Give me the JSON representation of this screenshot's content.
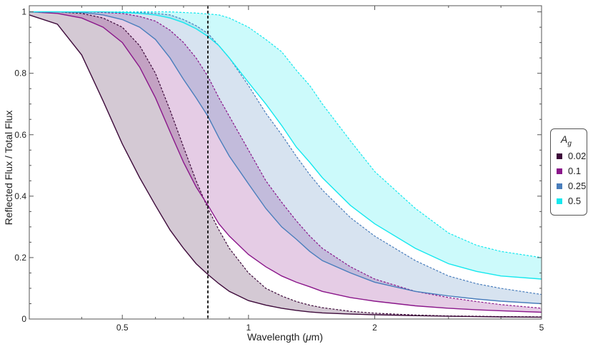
{
  "chart_data": {
    "type": "line",
    "xlabel_prefix": "Wavelength (",
    "xlabel_mu": "μ",
    "xlabel_suffix": "m)",
    "ylabel": "Reflected Flux / Total Flux",
    "xscale": "log",
    "xlim": [
      0.3,
      5
    ],
    "ylim": [
      0,
      1.02
    ],
    "xticks": [
      0.5,
      1,
      2,
      5
    ],
    "xtick_labels": [
      "0.5",
      "1",
      "2",
      "5"
    ],
    "yticks": [
      0,
      0.2,
      0.4,
      0.6,
      0.8,
      1
    ],
    "ytick_labels": [
      "0",
      "0.2",
      "0.4",
      "0.6",
      "0.8",
      "1"
    ],
    "vline_x": 0.8,
    "legend_title_main": "A",
    "legend_title_sub": "g",
    "x": [
      0.3,
      0.35,
      0.4,
      0.45,
      0.5,
      0.55,
      0.6,
      0.65,
      0.7,
      0.75,
      0.8,
      0.85,
      0.9,
      1.0,
      1.1,
      1.2,
      1.3,
      1.4,
      1.5,
      1.75,
      2.0,
      2.5,
      3.0,
      3.5,
      4.0,
      5.0
    ],
    "series": [
      {
        "name": "0.02",
        "color": "#3d0a3a",
        "solid": [
          0.99,
          0.96,
          0.86,
          0.71,
          0.57,
          0.46,
          0.37,
          0.29,
          0.23,
          0.18,
          0.145,
          0.115,
          0.09,
          0.06,
          0.045,
          0.035,
          0.028,
          0.023,
          0.02,
          0.016,
          0.014,
          0.011,
          0.009,
          0.008,
          0.007,
          0.006
        ],
        "dashed": [
          1.0,
          1.0,
          0.995,
          0.98,
          0.95,
          0.89,
          0.8,
          0.68,
          0.56,
          0.45,
          0.36,
          0.29,
          0.23,
          0.15,
          0.1,
          0.075,
          0.057,
          0.045,
          0.037,
          0.025,
          0.019,
          0.013,
          0.01,
          0.009,
          0.008,
          0.007
        ]
      },
      {
        "name": "0.1",
        "color": "#8a168a",
        "solid": [
          1.0,
          0.995,
          0.98,
          0.95,
          0.9,
          0.82,
          0.72,
          0.61,
          0.51,
          0.43,
          0.37,
          0.31,
          0.27,
          0.21,
          0.17,
          0.14,
          0.12,
          0.105,
          0.09,
          0.07,
          0.058,
          0.043,
          0.035,
          0.03,
          0.027,
          0.022
        ],
        "dashed": [
          1.0,
          1.0,
          1.0,
          0.998,
          0.995,
          0.985,
          0.97,
          0.94,
          0.9,
          0.85,
          0.79,
          0.72,
          0.66,
          0.55,
          0.45,
          0.38,
          0.32,
          0.27,
          0.23,
          0.17,
          0.13,
          0.09,
          0.07,
          0.057,
          0.047,
          0.035
        ]
      },
      {
        "name": "0.25",
        "color": "#4a7ebc",
        "solid": [
          1.0,
          1.0,
          0.998,
          0.99,
          0.975,
          0.95,
          0.91,
          0.85,
          0.78,
          0.72,
          0.66,
          0.59,
          0.53,
          0.44,
          0.36,
          0.3,
          0.26,
          0.22,
          0.19,
          0.15,
          0.12,
          0.09,
          0.075,
          0.065,
          0.058,
          0.05
        ],
        "dashed": [
          1.0,
          1.0,
          1.0,
          1.0,
          1.0,
          0.998,
          0.995,
          0.99,
          0.975,
          0.955,
          0.93,
          0.89,
          0.85,
          0.76,
          0.67,
          0.6,
          0.53,
          0.47,
          0.42,
          0.33,
          0.27,
          0.19,
          0.14,
          0.115,
          0.1,
          0.08
        ]
      },
      {
        "name": "0.5",
        "color": "#15e8ee",
        "solid": [
          1.0,
          1.0,
          1.0,
          1.0,
          0.998,
          0.995,
          0.99,
          0.98,
          0.965,
          0.945,
          0.92,
          0.89,
          0.85,
          0.77,
          0.7,
          0.63,
          0.56,
          0.51,
          0.46,
          0.37,
          0.31,
          0.23,
          0.18,
          0.155,
          0.14,
          0.13
        ],
        "dashed": [
          1.0,
          1.0,
          1.0,
          1.0,
          1.0,
          1.0,
          1.0,
          1.0,
          0.998,
          0.996,
          0.993,
          0.99,
          0.98,
          0.95,
          0.91,
          0.87,
          0.81,
          0.76,
          0.7,
          0.58,
          0.48,
          0.36,
          0.28,
          0.24,
          0.22,
          0.2
        ]
      }
    ]
  }
}
